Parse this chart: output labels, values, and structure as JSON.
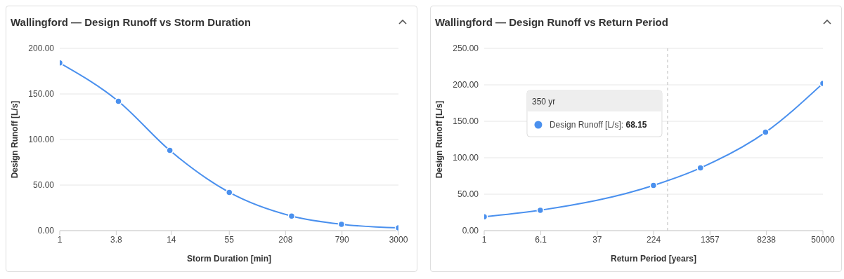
{
  "chart_data": [
    {
      "type": "line",
      "title": "Wallingford — Design Runoff vs Storm Duration",
      "xlabel": "Storm Duration [min]",
      "ylabel": "Design Runoff [L/s]",
      "log": "x",
      "grid": "y",
      "marker": "circle",
      "line_style": "solid",
      "x": [
        1,
        4,
        13.5,
        55,
        240,
        780,
        3000
      ],
      "series": [
        {
          "color": "#4a90ee",
          "values": [
            184,
            142,
            88,
            42,
            16,
            7,
            3
          ]
        }
      ],
      "xlim": [
        1,
        3000
      ],
      "xticks": [
        1,
        3.8,
        14,
        55,
        208,
        790,
        3000
      ],
      "ylim": [
        0,
        200
      ],
      "yticks": [
        {
          "value": 0,
          "label": "0.00"
        },
        {
          "value": 50,
          "label": "50.00"
        },
        {
          "value": 100,
          "label": "100.00"
        },
        {
          "value": 150,
          "label": "150.00"
        },
        {
          "value": 200,
          "label": "200.00"
        }
      ]
    },
    {
      "type": "line",
      "title": "Wallingford — Design Runoff vs Return Period",
      "xlabel": "Return Period [years]",
      "ylabel": "Design Runoff [L/s]",
      "log": "x",
      "grid": "y",
      "marker": "circle",
      "line_style": "solid",
      "x": [
        1,
        6,
        223,
        1000,
        8000,
        50000
      ],
      "series": [
        {
          "color": "#4a90ee",
          "values": [
            19,
            28,
            62,
            86,
            135,
            202
          ]
        }
      ],
      "xlim": [
        1,
        50000
      ],
      "xticks": [
        1,
        6.1,
        37,
        224,
        1357,
        8238,
        50000
      ],
      "ylim": [
        0,
        250
      ],
      "yticks": [
        {
          "value": 0,
          "label": "0.00"
        },
        {
          "value": 50,
          "label": "50.00"
        },
        {
          "value": 100,
          "label": "100.00"
        },
        {
          "value": 150,
          "label": "150.00"
        },
        {
          "value": 200,
          "label": "200.00"
        },
        {
          "value": 250,
          "label": "250.00"
        }
      ],
      "ref_lines": [
        {
          "axis": "x",
          "value": 350,
          "color": "#bbbbbb",
          "line_style": "dashed"
        }
      ],
      "annotations": [
        "350 yr",
        "Design Runoff [L/s]: 68.15"
      ]
    }
  ]
}
